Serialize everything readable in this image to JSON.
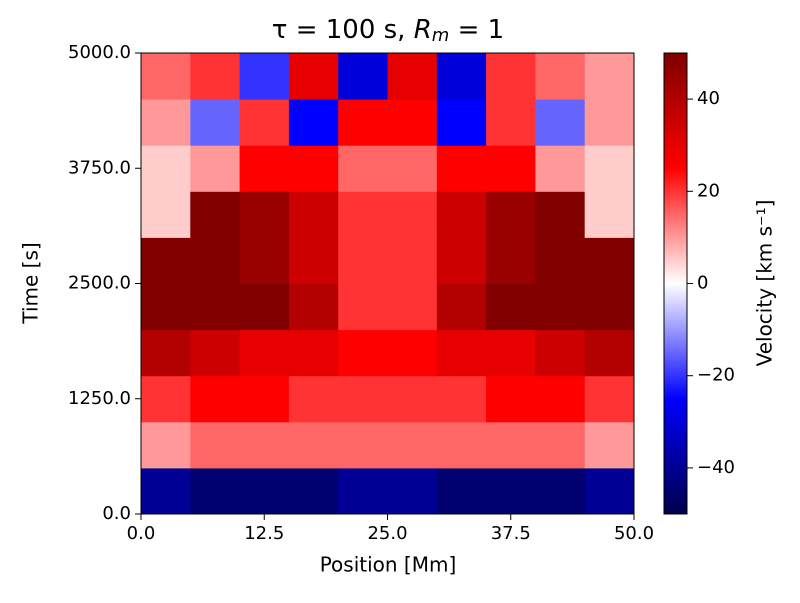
{
  "chart_data": {
    "type": "heatmap",
    "title": {
      "text": "τ = 100 s, ",
      "symbol": "R",
      "subscript": "m",
      "suffix": " = 1"
    },
    "xlabel": "Position [Mm]",
    "ylabel": "Time [s]",
    "colorbar_label": "Velocity [km s⁻¹]",
    "colormap": "seismic",
    "xlim": [
      0,
      50
    ],
    "ylim": [
      0,
      5000
    ],
    "clim": [
      -50,
      50
    ],
    "xticks": [
      {
        "value": 0,
        "label": "0.0"
      },
      12.5,
      {
        "value": 25,
        "label": "25.0"
      },
      37.5,
      {
        "value": 50,
        "label": "50.0"
      }
    ],
    "yticks": [
      {
        "value": 0,
        "label": "0.0"
      },
      {
        "value": 1250,
        "label": "1250.0"
      },
      {
        "value": 2500,
        "label": "2500.0"
      },
      {
        "value": 3750,
        "label": "3750.0"
      },
      {
        "value": 5000,
        "label": "5000.0"
      }
    ],
    "cticks": [
      {
        "value": -40,
        "label": "−40"
      },
      {
        "value": -20,
        "label": "−20"
      },
      0,
      20,
      40
    ],
    "z": [
      [
        -40,
        -45,
        -45,
        -45,
        -40,
        -40,
        -45,
        -45,
        -45,
        -40
      ],
      [
        10,
        15,
        15,
        15,
        15,
        15,
        15,
        15,
        15,
        10
      ],
      [
        20,
        25,
        25,
        20,
        20,
        20,
        20,
        25,
        25,
        20
      ],
      [
        40,
        35,
        30,
        30,
        25,
        25,
        30,
        30,
        35,
        40
      ],
      [
        50,
        50,
        50,
        40,
        20,
        20,
        40,
        50,
        50,
        50
      ],
      [
        50,
        50,
        45,
        35,
        20,
        20,
        35,
        45,
        50,
        50
      ],
      [
        5,
        50,
        45,
        35,
        20,
        20,
        35,
        45,
        50,
        5
      ],
      [
        5,
        10,
        25,
        25,
        15,
        15,
        25,
        25,
        10,
        5
      ],
      [
        10,
        -15,
        20,
        -25,
        25,
        25,
        -25,
        20,
        -15,
        10
      ],
      [
        15,
        20,
        -20,
        30,
        -30,
        30,
        -30,
        20,
        15,
        10
      ]
    ]
  }
}
